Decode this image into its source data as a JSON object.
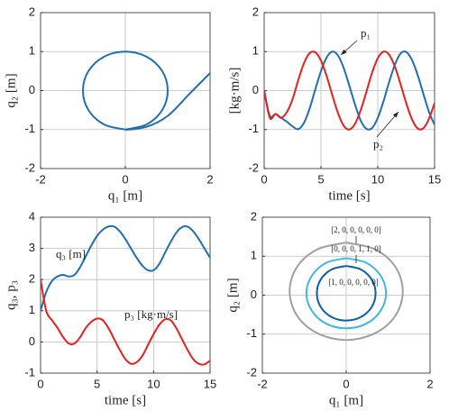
{
  "chart_data": [
    {
      "type": "line",
      "xlabel": "q₁ [m]",
      "ylabel": "q₂ [m]",
      "xlim": [
        -2,
        2
      ],
      "ylim": [
        -2,
        2
      ],
      "xticks": [
        -2,
        0,
        2
      ],
      "yticks": [
        -2,
        -1,
        0,
        1,
        2
      ],
      "grid": true,
      "series": [
        {
          "color": "#1f6fb5",
          "x": [
            2,
            1.5,
            1,
            0.5,
            0,
            0.5,
            0.87,
            1,
            0.87,
            0.5,
            0,
            -0.5,
            -0.87,
            -1,
            -0.87,
            -0.5,
            0
          ],
          "values": [
            0.45,
            -0.1,
            -0.65,
            -0.93,
            -1,
            -0.87,
            -0.5,
            0,
            0.5,
            0.87,
            1,
            0.87,
            0.5,
            0,
            -0.5,
            -0.87,
            -1
          ]
        }
      ]
    },
    {
      "type": "line",
      "xlabel": "time [s]",
      "ylabel": "[kg·m/s]",
      "xlim": [
        0,
        15
      ],
      "ylim": [
        -2,
        2
      ],
      "xticks": [
        0,
        5,
        10,
        15
      ],
      "yticks": [
        -2,
        -1,
        0,
        1,
        2
      ],
      "grid": true,
      "x": [
        0,
        0.5,
        1,
        1.5,
        2,
        2.5,
        3,
        3.5,
        4,
        4.5,
        5,
        5.5,
        6,
        6.5,
        7,
        7.5,
        8,
        8.5,
        9,
        9.5,
        10,
        10.5,
        11,
        11.5,
        12,
        12.5,
        13,
        13.5,
        14,
        14.5,
        15
      ],
      "series": [
        {
          "name": "p₁",
          "color": "#1f6fb5",
          "values": [
            0,
            -0.65,
            -0.6,
            -0.7,
            -0.8,
            -0.92,
            -0.99,
            -0.83,
            -0.46,
            0.03,
            0.5,
            0.85,
            1,
            0.9,
            0.58,
            0.12,
            -0.36,
            -0.77,
            -0.98,
            -0.96,
            -0.7,
            -0.28,
            0.22,
            0.66,
            0.95,
            0.99,
            0.79,
            0.41,
            -0.07,
            -0.54,
            -0.88
          ]
        },
        {
          "name": "p₂",
          "color": "#e8201f",
          "values": [
            0,
            -0.7,
            -0.6,
            -0.7,
            -0.55,
            -0.22,
            0.27,
            0.7,
            0.96,
            0.98,
            0.77,
            0.37,
            -0.12,
            -0.58,
            -0.9,
            -1,
            -0.85,
            -0.5,
            -0.03,
            0.46,
            0.83,
            1,
            0.92,
            0.62,
            0.17,
            -0.32,
            -0.73,
            -0.97,
            -0.97,
            -0.73,
            -0.32
          ]
        }
      ]
    },
    {
      "type": "line",
      "xlabel": "time [s]",
      "ylabel": "q₃,  p₃",
      "xlim": [
        0,
        15
      ],
      "ylim": [
        -1,
        4
      ],
      "xticks": [
        0,
        5,
        10,
        15
      ],
      "yticks": [
        -1,
        0,
        1,
        2,
        3,
        4
      ],
      "grid": true,
      "x": [
        0,
        0.5,
        1,
        1.5,
        2,
        2.5,
        3,
        3.5,
        4,
        4.5,
        5,
        5.5,
        6,
        6.5,
        7,
        7.5,
        8,
        8.5,
        9,
        9.5,
        10,
        10.5,
        11,
        11.5,
        12,
        12.5,
        13,
        13.5,
        14,
        14.5,
        15
      ],
      "series": [
        {
          "name": "q₃ [m]",
          "color": "#1f6fb5",
          "values": [
            1,
            1.6,
            1.95,
            2.1,
            2.15,
            2.1,
            2.15,
            2.4,
            2.75,
            3.1,
            3.4,
            3.6,
            3.7,
            3.7,
            3.55,
            3.3,
            3,
            2.7,
            2.45,
            2.3,
            2.3,
            2.5,
            2.85,
            3.2,
            3.5,
            3.68,
            3.7,
            3.55,
            3.3,
            3,
            2.7
          ]
        },
        {
          "name": "p₃ [kg·m/s]",
          "color": "#e8201f",
          "values": [
            2,
            1,
            0.7,
            0.45,
            0.15,
            -0.05,
            -0.05,
            0.15,
            0.45,
            0.65,
            0.75,
            0.7,
            0.45,
            0.1,
            -0.25,
            -0.55,
            -0.7,
            -0.65,
            -0.45,
            -0.1,
            0.25,
            0.55,
            0.72,
            0.7,
            0.45,
            0.1,
            -0.25,
            -0.55,
            -0.7,
            -0.72,
            -0.6
          ]
        }
      ]
    },
    {
      "type": "line",
      "xlabel": "q₁ [m]",
      "ylabel": "q₂ [m]",
      "xlim": [
        -2,
        2
      ],
      "ylim": [
        -2,
        2
      ],
      "xticks": [
        -2,
        0,
        2
      ],
      "yticks": [
        -2,
        -1,
        0,
        1,
        2
      ],
      "grid": true,
      "series": [
        {
          "name": "[2, 0, 0, 0, 0, 0]",
          "color": "#a0a0a0",
          "x": [
            0,
            0.68,
            1.17,
            1.35,
            1.17,
            0.68,
            0,
            -0.68,
            -1.17,
            -1.35,
            -1.17,
            -0.68,
            0
          ],
          "values": [
            1.35,
            1.18,
            0.73,
            0.1,
            -0.53,
            -0.98,
            -1.15,
            -0.98,
            -0.53,
            0.1,
            0.73,
            1.18,
            1.35
          ]
        },
        {
          "name": "[0, 0, 0, 1, 1, 0]",
          "color": "#3fb6e8",
          "x": [
            0,
            0.48,
            0.82,
            0.95,
            0.82,
            0.48,
            0,
            -0.48,
            -0.82,
            -0.95,
            -0.82,
            -0.48,
            0
          ],
          "values": [
            0.95,
            0.83,
            0.5,
            0.05,
            -0.4,
            -0.73,
            -0.85,
            -0.73,
            -0.4,
            0.05,
            0.5,
            0.83,
            0.95
          ]
        },
        {
          "name": "[1, 0, 0, 0, 0, 0]",
          "color": "#0b5ea8",
          "x": [
            0,
            0.35,
            0.61,
            0.7,
            0.61,
            0.35,
            0,
            -0.35,
            -0.61,
            -0.7,
            -0.61,
            -0.35,
            0
          ],
          "values": [
            0.75,
            0.66,
            0.4,
            0.05,
            -0.3,
            -0.56,
            -0.65,
            -0.56,
            -0.3,
            0.05,
            0.4,
            0.66,
            0.75
          ]
        }
      ]
    }
  ]
}
